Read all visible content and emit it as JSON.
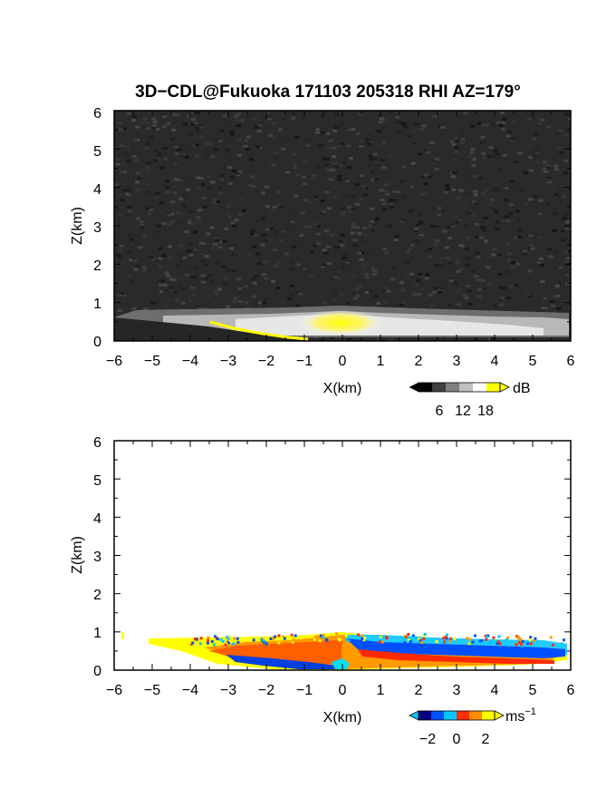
{
  "title": "3D−CDL@Fukuoka 171103 205318 RHI AZ=179°",
  "chart_data": [
    {
      "type": "heatmap",
      "panel": "reflectivity",
      "xlabel": "X(km)",
      "ylabel": "Z(km)",
      "xlim": [
        -6,
        6
      ],
      "ylim": [
        0,
        6
      ],
      "xticks": [
        "−6",
        "−5",
        "−4",
        "−3",
        "−2",
        "−1",
        "0",
        "1",
        "2",
        "3",
        "4",
        "5",
        "6"
      ],
      "yticks": [
        "0",
        "1",
        "2",
        "3",
        "4",
        "5",
        "6"
      ],
      "grid": false,
      "colorbar": {
        "unit": "dB",
        "ticks": [
          "6",
          "12",
          "18"
        ],
        "range": [
          0,
          20
        ],
        "colors": [
          "#000000",
          "#404040",
          "#808080",
          "#c0c0c0",
          "#ffffff",
          "#ffff00"
        ]
      },
      "echo_layer": {
        "top_height_km": [
          0.1,
          0.75,
          0.78,
          0.8,
          0.85,
          0.9,
          0.9,
          0.85,
          0.8,
          0.75,
          0.72,
          0.7,
          0.65
        ],
        "high_value_region_x_km": [
          -0.7,
          1.0
        ],
        "high_value_region_z_km": [
          0.3,
          0.7
        ]
      }
    },
    {
      "type": "heatmap",
      "panel": "doppler_velocity",
      "xlabel": "X(km)",
      "ylabel": "Z(km)",
      "xlim": [
        -6,
        6
      ],
      "ylim": [
        0,
        6
      ],
      "xticks": [
        "−6",
        "−5",
        "−4",
        "−3",
        "−2",
        "−1",
        "0",
        "1",
        "2",
        "3",
        "4",
        "5",
        "6"
      ],
      "yticks": [
        "0",
        "1",
        "2",
        "3",
        "4",
        "5",
        "6"
      ],
      "grid": false,
      "colorbar": {
        "unit": "ms",
        "unit_exponent": "−1",
        "ticks": [
          "−2",
          "0",
          "2"
        ],
        "range": [
          -3,
          3
        ],
        "colors": [
          "#000080",
          "#0050ff",
          "#00c8ff",
          "#ff3000",
          "#ff8c00",
          "#ffff00"
        ]
      },
      "echo_layer": {
        "x_range_km": [
          -5.9,
          5.9
        ],
        "top_height_km": [
          0.85,
          0.8,
          0.78,
          0.8,
          0.85,
          0.9,
          0.95,
          0.9,
          0.85,
          0.8,
          0.75,
          0.7,
          0.6
        ]
      }
    }
  ]
}
